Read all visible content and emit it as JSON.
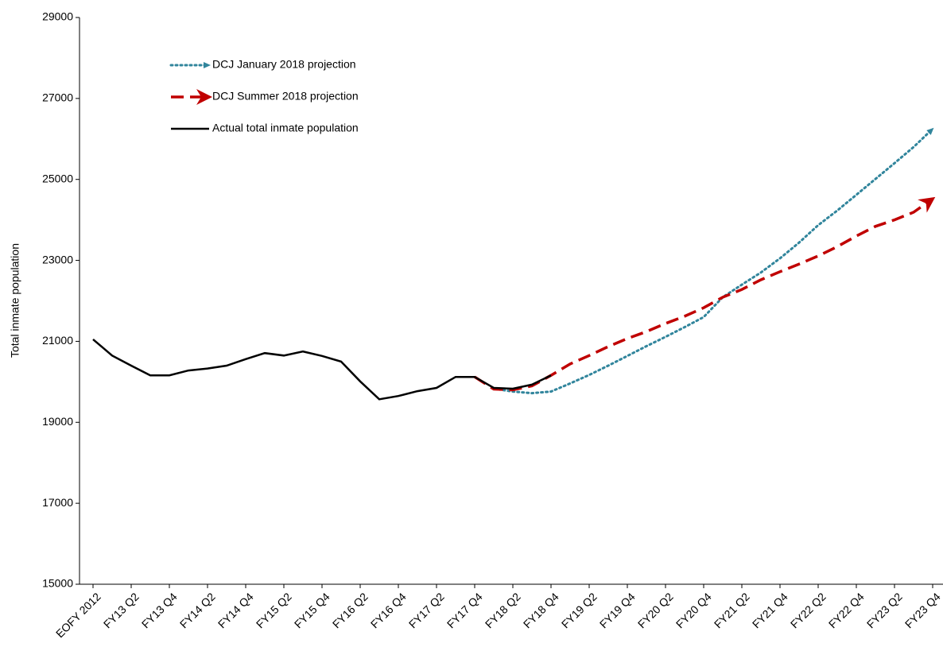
{
  "chart_data": {
    "type": "line",
    "y_label": "Total inmate population",
    "categories": [
      "EOFY 2012",
      null,
      "FY13 Q2",
      null,
      "FY13 Q4",
      null,
      "FY14 Q2",
      null,
      "FY14 Q4",
      null,
      "FY15 Q2",
      null,
      "FY15 Q4",
      null,
      "FY16 Q2",
      null,
      "FY16 Q4",
      null,
      "FY17 Q2",
      null,
      "FY17 Q4",
      null,
      "FY18 Q2",
      null,
      "FY18 Q4",
      null,
      "FY19 Q2",
      null,
      "FY19 Q4",
      null,
      "FY20 Q2",
      null,
      "FY20 Q4",
      null,
      "FY21 Q2",
      null,
      "FY21 Q4",
      null,
      "FY22 Q2",
      null,
      "FY22 Q4",
      null,
      "FY23 Q2",
      null,
      "FY23 Q4"
    ],
    "series": [
      {
        "name": "DCJ January 2018 projection",
        "color": "#31859c",
        "style": "dotted",
        "values": [
          null,
          null,
          null,
          null,
          null,
          null,
          null,
          null,
          null,
          null,
          null,
          null,
          null,
          null,
          null,
          null,
          null,
          null,
          null,
          null,
          null,
          19830,
          19760,
          19720,
          19760,
          19960,
          20170,
          20400,
          20640,
          20880,
          21110,
          21350,
          21600,
          22090,
          22400,
          22700,
          23050,
          23440,
          23870,
          24230,
          24620,
          25010,
          25400,
          25800,
          26250
        ]
      },
      {
        "name": "DCJ Summer 2018 projection",
        "color": "#c00000",
        "style": "dashed",
        "values": [
          null,
          null,
          null,
          null,
          null,
          null,
          null,
          null,
          null,
          null,
          null,
          null,
          null,
          null,
          null,
          null,
          null,
          null,
          null,
          null,
          20120,
          19820,
          19800,
          19900,
          20160,
          20440,
          20650,
          20870,
          21070,
          21240,
          21440,
          21620,
          21830,
          22090,
          22280,
          22520,
          22720,
          22910,
          23110,
          23340,
          23600,
          23840,
          24000,
          24190,
          24520
        ]
      },
      {
        "name": "Actual total inmate population",
        "color": "#000000",
        "style": "solid",
        "values": [
          21050,
          20650,
          20400,
          20160,
          20160,
          20280,
          20330,
          20400,
          20560,
          20710,
          20650,
          20750,
          20640,
          20500,
          20010,
          19570,
          19650,
          19770,
          19850,
          20120,
          20120,
          19850,
          19830,
          19930,
          20160,
          null,
          null,
          null,
          null,
          null,
          null,
          null,
          null,
          null,
          null,
          null,
          null,
          null,
          null,
          null,
          null,
          null,
          null,
          null,
          null
        ]
      }
    ],
    "ylim": [
      15000,
      29000
    ],
    "yticks": [
      15000,
      17000,
      19000,
      21000,
      23000,
      25000,
      27000,
      29000
    ],
    "grid": false,
    "legend": "upper left"
  }
}
